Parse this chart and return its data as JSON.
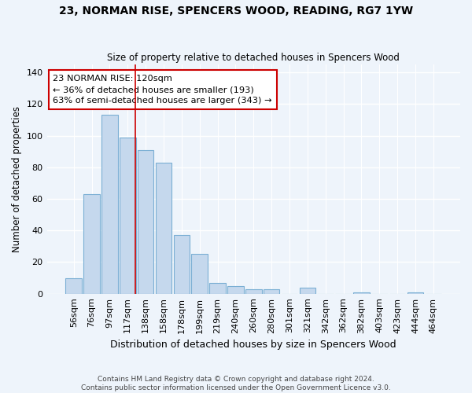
{
  "title": "23, NORMAN RISE, SPENCERS WOOD, READING, RG7 1YW",
  "subtitle": "Size of property relative to detached houses in Spencers Wood",
  "xlabel": "Distribution of detached houses by size in Spencers Wood",
  "ylabel": "Number of detached properties",
  "categories": [
    "56sqm",
    "76sqm",
    "97sqm",
    "117sqm",
    "138sqm",
    "158sqm",
    "178sqm",
    "199sqm",
    "219sqm",
    "240sqm",
    "260sqm",
    "280sqm",
    "301sqm",
    "321sqm",
    "342sqm",
    "362sqm",
    "382sqm",
    "403sqm",
    "423sqm",
    "444sqm",
    "464sqm"
  ],
  "values": [
    10,
    63,
    113,
    99,
    91,
    83,
    37,
    25,
    7,
    5,
    3,
    3,
    0,
    4,
    0,
    0,
    1,
    0,
    0,
    1,
    0
  ],
  "bar_color": "#c5d8ed",
  "bar_edge_color": "#7bafd4",
  "background_color": "#eef4fb",
  "grid_color": "#ffffff",
  "vline_x_idx": 3,
  "vline_color": "#cc0000",
  "annotation_text": "23 NORMAN RISE: 120sqm\n← 36% of detached houses are smaller (193)\n63% of semi-detached houses are larger (343) →",
  "annotation_box_color": "#ffffff",
  "annotation_box_edge": "#cc0000",
  "ylim": [
    0,
    145
  ],
  "yticks": [
    0,
    20,
    40,
    60,
    80,
    100,
    120,
    140
  ],
  "footer": "Contains HM Land Registry data © Crown copyright and database right 2024.\nContains public sector information licensed under the Open Government Licence v3.0."
}
